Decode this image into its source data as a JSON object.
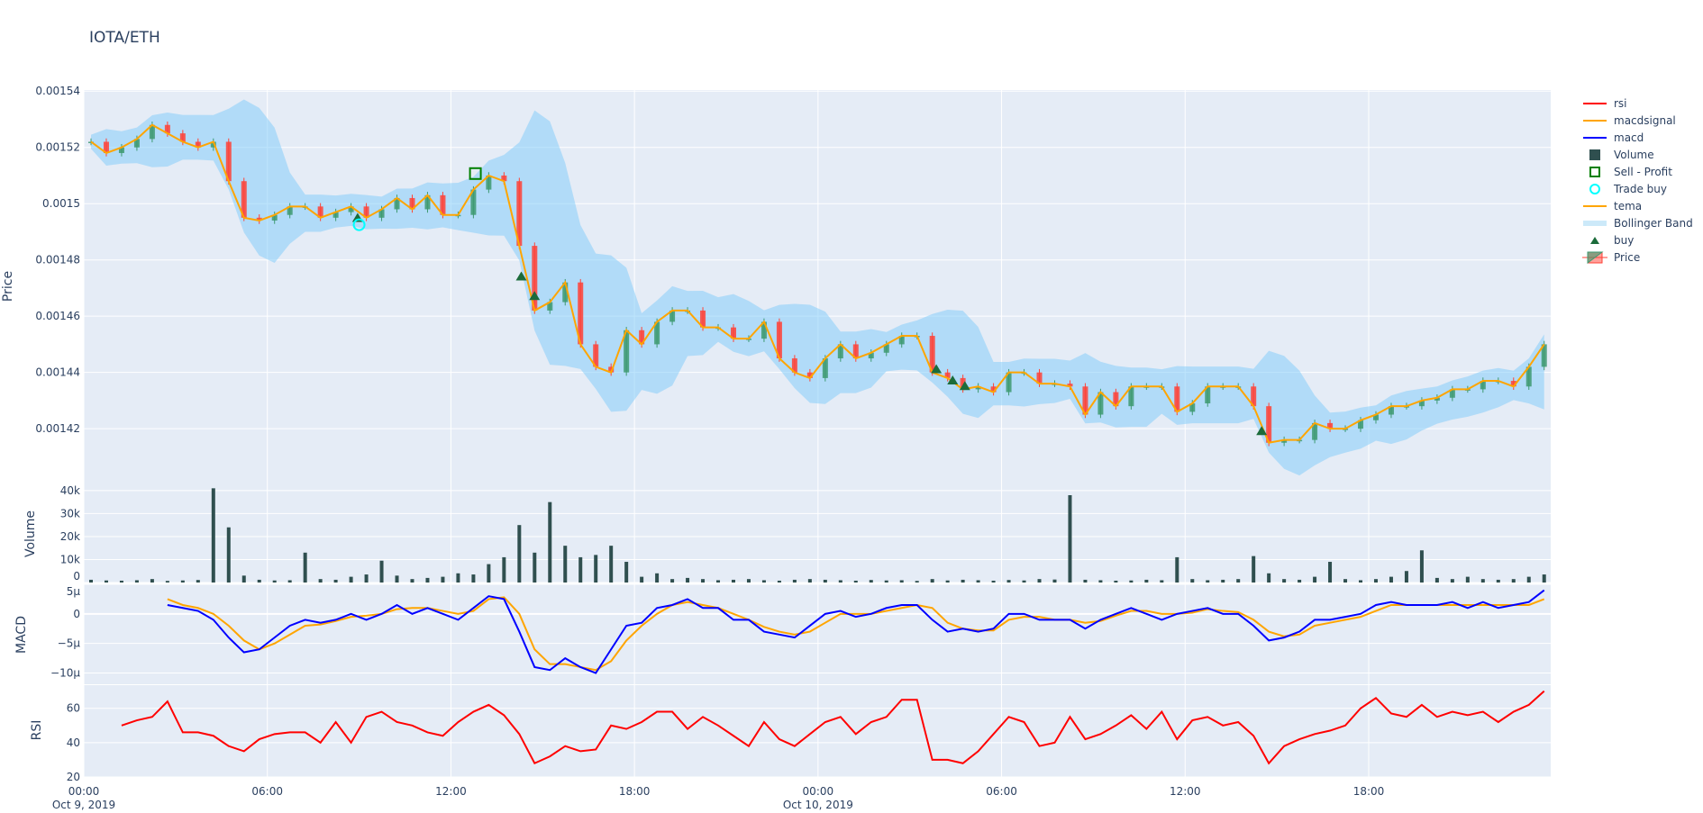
{
  "title": "IOTA/ETH",
  "legend": [
    {
      "name": "rsi",
      "color": "#ff0000",
      "symbol": "line"
    },
    {
      "name": "macdsignal",
      "color": "#ffa500",
      "symbol": "line"
    },
    {
      "name": "macd",
      "color": "#0000ff",
      "symbol": "line"
    },
    {
      "name": "Volume",
      "color": "#2f4f4f",
      "symbol": "square"
    },
    {
      "name": "Sell - Profit",
      "color": "#008000",
      "symbol": "square-open"
    },
    {
      "name": "Trade buy",
      "color": "#00ffff",
      "symbol": "circle-open"
    },
    {
      "name": "tema",
      "color": "#ffa500",
      "symbol": "line"
    },
    {
      "name": "Bollinger Band",
      "color": "#cce9f9",
      "symbol": "band"
    },
    {
      "name": "buy",
      "color": "#1b6b3a",
      "symbol": "triangle-up"
    },
    {
      "name": "Price",
      "color": "#3d9970",
      "symbol": "candle"
    }
  ],
  "chart_data": {
    "type": "candlestick-with-subplots",
    "title": "IOTA/ETH",
    "x_ticks": [
      {
        "time": "2019-10-09 00:00",
        "label": "00:00",
        "sub": "Oct 9, 2019"
      },
      {
        "time": "2019-10-09 06:00",
        "label": "06:00",
        "sub": ""
      },
      {
        "time": "2019-10-09 12:00",
        "label": "12:00",
        "sub": ""
      },
      {
        "time": "2019-10-09 18:00",
        "label": "18:00",
        "sub": ""
      },
      {
        "time": "2019-10-10 00:00",
        "label": "00:00",
        "sub": "Oct 10, 2019"
      },
      {
        "time": "2019-10-10 06:00",
        "label": "06:00",
        "sub": ""
      },
      {
        "time": "2019-10-10 12:00",
        "label": "12:00",
        "sub": ""
      },
      {
        "time": "2019-10-10 18:00",
        "label": "18:00",
        "sub": ""
      }
    ],
    "xlim": [
      "2019-10-09 00:00",
      "2019-10-10 23:57"
    ],
    "times": [
      "2019-10-09 00:00",
      "2019-10-09 00:30",
      "2019-10-09 01:00",
      "2019-10-09 01:30",
      "2019-10-09 02:00",
      "2019-10-09 02:30",
      "2019-10-09 03:00",
      "2019-10-09 03:30",
      "2019-10-09 04:00",
      "2019-10-09 04:30",
      "2019-10-09 05:00",
      "2019-10-09 05:30",
      "2019-10-09 06:00",
      "2019-10-09 06:30",
      "2019-10-09 07:00",
      "2019-10-09 07:30",
      "2019-10-09 08:00",
      "2019-10-09 08:30",
      "2019-10-09 09:00",
      "2019-10-09 09:30",
      "2019-10-09 10:00",
      "2019-10-09 10:30",
      "2019-10-09 11:00",
      "2019-10-09 11:30",
      "2019-10-09 12:00",
      "2019-10-09 12:30",
      "2019-10-09 13:00",
      "2019-10-09 13:30",
      "2019-10-09 14:00",
      "2019-10-09 14:30",
      "2019-10-09 15:00",
      "2019-10-09 15:30",
      "2019-10-09 16:00",
      "2019-10-09 16:30",
      "2019-10-09 17:00",
      "2019-10-09 17:30",
      "2019-10-09 18:00",
      "2019-10-09 18:30",
      "2019-10-09 19:00",
      "2019-10-09 19:30",
      "2019-10-09 20:00",
      "2019-10-09 20:30",
      "2019-10-09 21:00",
      "2019-10-09 21:30",
      "2019-10-09 22:00",
      "2019-10-09 22:30",
      "2019-10-09 23:00",
      "2019-10-09 23:30",
      "2019-10-10 00:00",
      "2019-10-10 00:30",
      "2019-10-10 01:00",
      "2019-10-10 01:30",
      "2019-10-10 02:00",
      "2019-10-10 02:30",
      "2019-10-10 03:00",
      "2019-10-10 03:30",
      "2019-10-10 04:00",
      "2019-10-10 04:30",
      "2019-10-10 05:00",
      "2019-10-10 05:30",
      "2019-10-10 06:00",
      "2019-10-10 06:30",
      "2019-10-10 07:00",
      "2019-10-10 07:30",
      "2019-10-10 08:00",
      "2019-10-10 08:30",
      "2019-10-10 09:00",
      "2019-10-10 09:30",
      "2019-10-10 10:00",
      "2019-10-10 10:30",
      "2019-10-10 11:00",
      "2019-10-10 11:30",
      "2019-10-10 12:00",
      "2019-10-10 12:30",
      "2019-10-10 13:00",
      "2019-10-10 13:30",
      "2019-10-10 14:00",
      "2019-10-10 14:30",
      "2019-10-10 15:00",
      "2019-10-10 15:30",
      "2019-10-10 16:00",
      "2019-10-10 16:30",
      "2019-10-10 17:00",
      "2019-10-10 17:30",
      "2019-10-10 18:00",
      "2019-10-10 18:30",
      "2019-10-10 19:00",
      "2019-10-10 19:30",
      "2019-10-10 20:00",
      "2019-10-10 20:30",
      "2019-10-10 21:00",
      "2019-10-10 21:30",
      "2019-10-10 22:00",
      "2019-10-10 22:30",
      "2019-10-10 23:00",
      "2019-10-10 23:30"
    ],
    "price": {
      "ylabel": "Price",
      "ylim": [
        0.0014002,
        0.0015404
      ],
      "y_ticks": [
        "0.00142",
        "0.00144",
        "0.00146",
        "0.00148",
        "0.0015",
        "0.00152",
        "0.00154"
      ],
      "close": [
        0.001522,
        0.001518,
        0.00152,
        0.001523,
        0.001528,
        0.001525,
        0.001522,
        0.00152,
        0.001522,
        0.001508,
        0.001495,
        0.001494,
        0.001496,
        0.001499,
        0.001499,
        0.001495,
        0.001497,
        0.001499,
        0.001495,
        0.001498,
        0.001502,
        0.001498,
        0.001503,
        0.001496,
        0.001496,
        0.001505,
        0.00151,
        0.001508,
        0.001485,
        0.001462,
        0.001465,
        0.001472,
        0.00145,
        0.001442,
        0.00144,
        0.001455,
        0.00145,
        0.001458,
        0.001462,
        0.001462,
        0.001456,
        0.001456,
        0.001452,
        0.001452,
        0.001458,
        0.001445,
        0.00144,
        0.001438,
        0.001445,
        0.00145,
        0.001445,
        0.001447,
        0.00145,
        0.001453,
        0.001453,
        0.00144,
        0.001438,
        0.001434,
        0.001435,
        0.001433,
        0.00144,
        0.00144,
        0.001436,
        0.001436,
        0.001435,
        0.001425,
        0.001433,
        0.001428,
        0.001435,
        0.001435,
        0.001435,
        0.001426,
        0.001429,
        0.001435,
        0.001435,
        0.001435,
        0.001428,
        0.001415,
        0.001416,
        0.001416,
        0.001422,
        0.00142,
        0.00142,
        0.001423,
        0.001425,
        0.001428,
        0.001428,
        0.00143,
        0.001431,
        0.001434,
        0.001434,
        0.001437,
        0.001437,
        0.001435,
        0.001442,
        0.00145
      ],
      "buy": [
        {
          "time": "2019-10-09 08:57",
          "price": 0.0014948
        },
        {
          "time": "2019-10-09 14:18",
          "price": 0.001474
        },
        {
          "time": "2019-10-09 14:44",
          "price": 0.001467
        },
        {
          "time": "2019-10-10 03:52",
          "price": 0.001441
        },
        {
          "time": "2019-10-10 04:24",
          "price": 0.001437
        },
        {
          "time": "2019-10-10 04:48",
          "price": 0.001435
        },
        {
          "time": "2019-10-10 14:30",
          "price": 0.001419
        }
      ],
      "trade_buy": [
        {
          "time": "2019-10-09 09:00",
          "price": 0.0014925
        }
      ],
      "sell_profit": [
        {
          "time": "2019-10-09 12:48",
          "price": 0.0015107
        }
      ]
    },
    "volume": {
      "ylabel": "Volume",
      "ylim": [
        0,
        42700
      ],
      "y_ticks": [
        {
          "v": 0,
          "label": "0"
        },
        {
          "v": 10000,
          "label": "10k"
        },
        {
          "v": 20000,
          "label": "20k"
        },
        {
          "v": 30000,
          "label": "30k"
        },
        {
          "v": 40000,
          "label": "40k"
        }
      ],
      "values": [
        1200,
        900,
        800,
        1000,
        1500,
        700,
        900,
        1100,
        41000,
        24000,
        3000,
        1200,
        900,
        1000,
        13000,
        1500,
        1200,
        2500,
        3500,
        9500,
        3000,
        1500,
        2000,
        2500,
        4000,
        3500,
        8000,
        11000,
        25000,
        13000,
        35000,
        16000,
        11000,
        12000,
        16000,
        9000,
        2500,
        4000,
        1500,
        2000,
        1500,
        1000,
        1200,
        1500,
        1000,
        800,
        1200,
        1500,
        1200,
        1000,
        800,
        1100,
        900,
        1000,
        700,
        1500,
        900,
        1200,
        1000,
        800,
        1100,
        900,
        1500,
        1300,
        38000,
        1200,
        1000,
        800,
        900,
        1200,
        1000,
        11000,
        1500,
        1000,
        1200,
        1500,
        11500,
        4000,
        1500,
        1200,
        2500,
        9000,
        1500,
        1000,
        1500,
        2500,
        5000,
        14000,
        2000,
        1500,
        2500,
        1500,
        1200,
        1500,
        2500,
        3500
      ]
    },
    "macd": {
      "ylabel": "MACD",
      "ylim": [
        -11.9,
        5
      ],
      "unit": "µ",
      "y_ticks": [
        {
          "v": 5,
          "label": "5µ"
        },
        {
          "v": 0,
          "label": "0"
        },
        {
          "v": -5,
          "label": "−5µ"
        },
        {
          "v": -10,
          "label": "−10µ"
        }
      ],
      "macd": [
        null,
        null,
        null,
        null,
        null,
        1.5,
        1.0,
        0.5,
        -1,
        -4,
        -6.5,
        -6,
        -4,
        -2,
        -1,
        -1.5,
        -1,
        0,
        -1,
        0,
        1.5,
        0,
        1,
        0,
        -1,
        1,
        3,
        2.5,
        -3,
        -9,
        -9.5,
        -7.5,
        -9,
        -10,
        -6,
        -2,
        -1.5,
        1,
        1.5,
        2.5,
        1,
        1,
        -1,
        -1,
        -3,
        -3.5,
        -4,
        -2,
        0,
        0.5,
        -0.5,
        0,
        1,
        1.5,
        1.5,
        -1,
        -3,
        -2.5,
        -3,
        -2.5,
        0,
        0,
        -1,
        -1,
        -1,
        -2.5,
        -1,
        0,
        1,
        0,
        -1,
        0,
        0.5,
        1,
        0,
        0,
        -2,
        -4.5,
        -4,
        -3,
        -1,
        -1,
        -0.5,
        0,
        1.5,
        2,
        1.5,
        1.5,
        1.5,
        2,
        1,
        2,
        1,
        1.5,
        2,
        4
      ],
      "macdsignal": [
        null,
        null,
        null,
        null,
        null,
        2.5,
        1.5,
        1,
        0,
        -2,
        -4.5,
        -6,
        -5,
        -3.5,
        -2,
        -1.8,
        -1.2,
        -0.5,
        -0.3,
        0,
        0.8,
        1,
        1,
        0.5,
        0,
        0.5,
        2.5,
        2.8,
        0,
        -6,
        -8.5,
        -8.5,
        -9,
        -9.5,
        -8,
        -4.5,
        -2,
        0,
        1.5,
        2,
        1.5,
        1,
        0,
        -1,
        -2.2,
        -3,
        -3.5,
        -3,
        -1.5,
        0,
        0,
        0,
        0.5,
        1,
        1.5,
        1,
        -1.5,
        -2.5,
        -2.8,
        -2.8,
        -1,
        -0.5,
        -0.5,
        -1,
        -1,
        -1.5,
        -1.2,
        -0.3,
        0.5,
        0.5,
        0,
        0,
        0.2,
        0.8,
        0.5,
        0.3,
        -1,
        -3,
        -3.8,
        -3.5,
        -2,
        -1.5,
        -1,
        -0.5,
        0.5,
        1.5,
        1.5,
        1.5,
        1.5,
        1.5,
        1.5,
        1.5,
        1.5,
        1.5,
        1.5,
        2.5
      ]
    },
    "rsi": {
      "ylabel": "RSI",
      "ylim": [
        20,
        73.5
      ],
      "y_ticks": [
        {
          "v": 20,
          "label": "20"
        },
        {
          "v": 40,
          "label": "40"
        },
        {
          "v": 60,
          "label": "60"
        }
      ],
      "values": [
        null,
        null,
        50,
        53,
        55,
        64,
        46,
        46,
        44,
        38,
        35,
        42,
        45,
        46,
        46,
        40,
        52,
        40,
        55,
        58,
        52,
        50,
        46,
        44,
        52,
        58,
        62,
        56,
        45,
        28,
        32,
        38,
        35,
        36,
        50,
        48,
        52,
        58,
        58,
        48,
        55,
        50,
        44,
        38,
        52,
        42,
        38,
        45,
        52,
        55,
        45,
        52,
        55,
        65,
        65,
        30,
        30,
        28,
        35,
        45,
        55,
        52,
        38,
        40,
        55,
        42,
        45,
        50,
        56,
        48,
        58,
        42,
        53,
        55,
        50,
        52,
        44,
        28,
        38,
        42,
        45,
        47,
        50,
        60,
        66,
        57,
        55,
        62,
        55,
        58,
        56,
        58,
        52,
        58,
        62,
        70
      ]
    }
  }
}
